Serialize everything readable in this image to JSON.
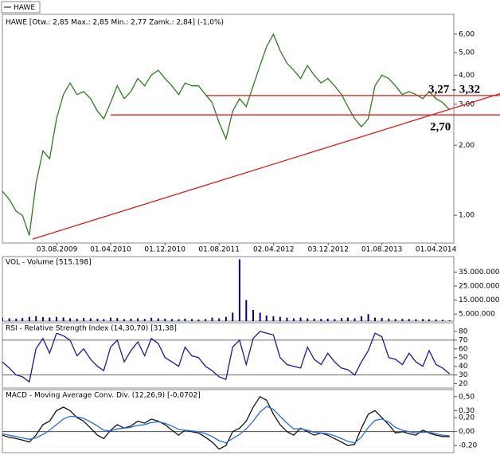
{
  "chart_data": [
    {
      "type": "line",
      "title": "HAWE [Otw.: 2,85  Max.: 2,85  Min.: 2,77  Zamk.: 2,84] (-1,0%)",
      "log_y": true,
      "x": [
        "01.12.2008",
        "01.01.2009",
        "01.02.2009",
        "01.03.2009",
        "01.04.2009",
        "01.05.2009",
        "01.06.2009",
        "01.07.2009",
        "01.08.2009",
        "01.09.2009",
        "01.10.2009",
        "01.11.2009",
        "01.12.2009",
        "01.01.2010",
        "01.02.2010",
        "01.03.2010",
        "01.04.2010",
        "01.05.2010",
        "01.06.2010",
        "01.07.2010",
        "01.08.2010",
        "01.09.2010",
        "01.10.2010",
        "01.11.2010",
        "01.12.2010",
        "01.01.2011",
        "01.02.2011",
        "01.03.2011",
        "01.04.2011",
        "01.05.2011",
        "01.06.2011",
        "01.07.2011",
        "01.08.2011",
        "01.09.2011",
        "01.10.2011",
        "01.11.2011",
        "01.12.2011",
        "01.01.2012",
        "01.02.2012",
        "01.03.2012",
        "01.04.2012",
        "01.05.2012",
        "01.06.2012",
        "01.07.2012",
        "01.08.2012",
        "01.09.2012",
        "01.10.2012",
        "01.11.2012",
        "01.12.2012",
        "01.01.2013",
        "01.02.2013",
        "01.03.2013",
        "01.04.2013",
        "01.05.2013",
        "01.06.2013",
        "01.07.2013",
        "01.08.2013",
        "01.09.2013",
        "01.10.2013",
        "01.11.2013",
        "01.12.2013",
        "01.01.2014",
        "01.02.2014",
        "01.03.2014",
        "01.04.2014",
        "01.05.2014",
        "01.06.2014"
      ],
      "series": [
        {
          "name": "HAWE",
          "color": "#2a7d1f",
          "values": [
            1.27,
            1.17,
            1.04,
            1.0,
            0.82,
            1.37,
            1.89,
            1.75,
            2.6,
            3.3,
            3.7,
            3.3,
            3.4,
            3.17,
            2.8,
            2.6,
            3.05,
            3.6,
            3.17,
            3.4,
            3.87,
            3.6,
            4.0,
            4.2,
            3.87,
            3.6,
            3.3,
            3.7,
            3.6,
            3.6,
            3.3,
            3.05,
            2.5,
            2.13,
            2.8,
            3.17,
            2.93,
            3.6,
            4.4,
            5.3,
            6.0,
            5.1,
            4.5,
            4.2,
            3.87,
            4.4,
            4.0,
            3.7,
            3.87,
            3.6,
            3.3,
            2.93,
            2.6,
            2.4,
            2.6,
            3.6,
            4.0,
            3.87,
            3.6,
            3.3,
            3.4,
            3.3,
            3.17,
            3.4,
            3.17,
            3.05,
            2.84
          ]
        }
      ],
      "xlim": [
        "01.12.2008",
        "20.06.2014"
      ],
      "xticks": [
        "03.08.2009",
        "01.04.2010",
        "01.12.2010",
        "01.08.2011",
        "02.04.2012",
        "03.12.2012",
        "01.08.2013",
        "01.04.2014"
      ],
      "ylim": [
        0.76,
        7.3
      ],
      "yticks": [
        {
          "value": 1,
          "label": "1,00"
        },
        {
          "value": 2,
          "label": "2,00"
        },
        {
          "value": 3,
          "label": "3,00"
        },
        {
          "value": 4,
          "label": "4,00"
        },
        {
          "value": 5,
          "label": "5,00"
        },
        {
          "value": 6,
          "label": "6,00"
        }
      ],
      "reference_lines": [
        {
          "value": 3.27,
          "from": "01.06.2011",
          "color": "#d02020"
        },
        {
          "value": 2.7,
          "from": "01.04.2010",
          "color": "#d02020"
        }
      ],
      "trendline": {
        "x": [
          "15.04.2009",
          "20.06.2014"
        ],
        "values": [
          0.79,
          2.89
        ],
        "color": "#d02020"
      },
      "annotations": [
        "3,27 - 3,32",
        "2,70"
      ]
    },
    {
      "type": "bar",
      "title": "VOL - Volume [515.198]",
      "x": [
        "01.12.2008",
        "01.01.2009",
        "01.02.2009",
        "01.03.2009",
        "01.04.2009",
        "01.05.2009",
        "01.06.2009",
        "01.07.2009",
        "01.08.2009",
        "01.09.2009",
        "01.10.2009",
        "01.11.2009",
        "01.12.2009",
        "01.01.2010",
        "01.02.2010",
        "01.03.2010",
        "01.04.2010",
        "01.05.2010",
        "01.06.2010",
        "01.07.2010",
        "01.08.2010",
        "01.09.2010",
        "01.10.2010",
        "01.11.2010",
        "01.12.2010",
        "01.01.2011",
        "01.02.2011",
        "01.03.2011",
        "01.04.2011",
        "01.05.2011",
        "01.06.2011",
        "01.07.2011",
        "01.08.2011",
        "01.09.2011",
        "01.10.2011",
        "01.11.2011",
        "01.12.2011",
        "01.01.2012",
        "01.02.2012",
        "01.03.2012",
        "01.04.2012",
        "01.05.2012",
        "01.06.2012",
        "01.07.2012",
        "01.08.2012",
        "01.09.2012",
        "01.10.2012",
        "01.11.2012",
        "01.12.2012",
        "01.01.2013",
        "01.02.2013",
        "01.03.2013",
        "01.04.2013",
        "01.05.2013",
        "01.06.2013",
        "01.07.2013",
        "01.08.2013",
        "01.09.2013",
        "01.10.2013",
        "01.11.2013",
        "01.12.2013",
        "01.01.2014",
        "01.02.2014",
        "01.03.2014",
        "01.04.2014",
        "01.05.2014",
        "01.06.2014"
      ],
      "series": [
        {
          "color": "#00008b",
          "values": [
            2500000,
            2000000,
            1800000,
            2200000,
            3000000,
            3500000,
            2800000,
            2500000,
            3000000,
            2600000,
            2000000,
            1800000,
            2200000,
            2000000,
            1800000,
            1500000,
            2500000,
            2200000,
            1500000,
            1800000,
            2000000,
            1600000,
            2400000,
            2000000,
            1800000,
            1500000,
            1400000,
            1800000,
            1500000,
            1200000,
            1500000,
            2500000,
            2000000,
            3000000,
            6000000,
            44000000,
            15000000,
            8000000,
            6000000,
            4000000,
            3500000,
            3000000,
            2500000,
            2000000,
            2500000,
            2000000,
            1800000,
            1600000,
            1800000,
            1500000,
            2200000,
            2500000,
            2000000,
            3500000,
            5000000,
            2500000,
            2200000,
            1800000,
            1500000,
            1600000,
            1500000,
            1400000,
            1500000,
            1300000,
            1200000,
            1000000,
            515198
          ]
        }
      ],
      "xlim": [
        "01.12.2008",
        "20.06.2014"
      ],
      "ylim": [
        0,
        46000000
      ],
      "yticks": [
        {
          "value": 5000000,
          "label": "5.000.000"
        },
        {
          "value": 15000000,
          "label": "15.000.000"
        },
        {
          "value": 25000000,
          "label": "25.000.000"
        },
        {
          "value": 35000000,
          "label": "35.000.000"
        }
      ]
    },
    {
      "type": "line",
      "title": "RSI - Relative Strength Index (14,30,70) [31,38]",
      "x": [
        "01.12.2008",
        "01.01.2009",
        "01.02.2009",
        "01.03.2009",
        "01.04.2009",
        "01.05.2009",
        "01.06.2009",
        "01.07.2009",
        "01.08.2009",
        "01.09.2009",
        "01.10.2009",
        "01.11.2009",
        "01.12.2009",
        "01.01.2010",
        "01.02.2010",
        "01.03.2010",
        "01.04.2010",
        "01.05.2010",
        "01.06.2010",
        "01.07.2010",
        "01.08.2010",
        "01.09.2010",
        "01.10.2010",
        "01.11.2010",
        "01.12.2010",
        "01.01.2011",
        "01.02.2011",
        "01.03.2011",
        "01.04.2011",
        "01.05.2011",
        "01.06.2011",
        "01.07.2011",
        "01.08.2011",
        "01.09.2011",
        "01.10.2011",
        "01.11.2011",
        "01.12.2011",
        "01.01.2012",
        "01.02.2012",
        "01.03.2012",
        "01.04.2012",
        "01.05.2012",
        "01.06.2012",
        "01.07.2012",
        "01.08.2012",
        "01.09.2012",
        "01.10.2012",
        "01.11.2012",
        "01.12.2012",
        "01.01.2013",
        "01.02.2013",
        "01.03.2013",
        "01.04.2013",
        "01.05.2013",
        "01.06.2013",
        "01.07.2013",
        "01.08.2013",
        "01.09.2013",
        "01.10.2013",
        "01.11.2013",
        "01.12.2013",
        "01.01.2014",
        "01.02.2014",
        "01.03.2014",
        "01.04.2014",
        "01.05.2014",
        "01.06.2014"
      ],
      "series": [
        {
          "color": "#1a1a9a",
          "values": [
            45,
            38,
            30,
            28,
            22,
            60,
            72,
            55,
            78,
            75,
            70,
            52,
            60,
            48,
            40,
            35,
            62,
            70,
            45,
            58,
            68,
            52,
            72,
            66,
            50,
            45,
            40,
            62,
            52,
            50,
            40,
            35,
            28,
            25,
            62,
            70,
            42,
            72,
            80,
            78,
            76,
            50,
            42,
            40,
            38,
            62,
            48,
            42,
            55,
            45,
            38,
            36,
            30,
            45,
            58,
            78,
            74,
            50,
            48,
            42,
            55,
            45,
            40,
            58,
            42,
            38,
            31.38
          ]
        }
      ],
      "xlim": [
        "01.12.2008",
        "20.06.2014"
      ],
      "ylim": [
        15,
        90
      ],
      "yticks": [
        20,
        30,
        40,
        50,
        60,
        70,
        80
      ],
      "levels": [
        30,
        70
      ]
    },
    {
      "type": "line",
      "title": "MACD - Moving Average Conv. Div. (12,26,9) [-0,0702]",
      "x": [
        "01.12.2008",
        "01.01.2009",
        "01.02.2009",
        "01.03.2009",
        "01.04.2009",
        "01.05.2009",
        "01.06.2009",
        "01.07.2009",
        "01.08.2009",
        "01.09.2009",
        "01.10.2009",
        "01.11.2009",
        "01.12.2009",
        "01.01.2010",
        "01.02.2010",
        "01.03.2010",
        "01.04.2010",
        "01.05.2010",
        "01.06.2010",
        "01.07.2010",
        "01.08.2010",
        "01.09.2010",
        "01.10.2010",
        "01.11.2010",
        "01.12.2010",
        "01.01.2011",
        "01.02.2011",
        "01.03.2011",
        "01.04.2011",
        "01.05.2011",
        "01.06.2011",
        "01.07.2011",
        "01.08.2011",
        "01.09.2011",
        "01.10.2011",
        "01.11.2011",
        "01.12.2011",
        "01.01.2012",
        "01.02.2012",
        "01.03.2012",
        "01.04.2012",
        "01.05.2012",
        "01.06.2012",
        "01.07.2012",
        "01.08.2012",
        "01.09.2012",
        "01.10.2012",
        "01.11.2012",
        "01.12.2012",
        "01.01.2013",
        "01.02.2013",
        "01.03.2013",
        "01.04.2013",
        "01.05.2013",
        "01.06.2013",
        "01.07.2013",
        "01.08.2013",
        "01.09.2013",
        "01.10.2013",
        "01.11.2013",
        "01.12.2013",
        "01.01.2014",
        "01.02.2014",
        "01.03.2014",
        "01.04.2014",
        "01.05.2014",
        "01.06.2014"
      ],
      "series": [
        {
          "color": "#111111",
          "values": [
            -0.05,
            -0.08,
            -0.1,
            -0.12,
            -0.15,
            -0.05,
            0.1,
            0.15,
            0.3,
            0.35,
            0.3,
            0.2,
            0.15,
            0.05,
            -0.05,
            -0.1,
            0.02,
            0.1,
            0.05,
            0.08,
            0.15,
            0.12,
            0.18,
            0.15,
            0.1,
            0.02,
            -0.05,
            0.02,
            0.0,
            -0.02,
            -0.08,
            -0.15,
            -0.25,
            -0.2,
            0.0,
            0.05,
            0.15,
            0.35,
            0.5,
            0.45,
            0.25,
            0.1,
            0.0,
            -0.05,
            0.05,
            0.0,
            -0.05,
            -0.02,
            -0.05,
            -0.1,
            -0.15,
            -0.2,
            -0.18,
            0.05,
            0.25,
            0.3,
            0.2,
            0.1,
            -0.02,
            0.0,
            -0.03,
            -0.05,
            0.02,
            -0.02,
            -0.05,
            -0.07,
            -0.0702
          ]
        },
        {
          "color": "#2b6cd6",
          "values": [
            -0.03,
            -0.05,
            -0.07,
            -0.09,
            -0.11,
            -0.09,
            -0.04,
            0.02,
            0.1,
            0.18,
            0.22,
            0.21,
            0.19,
            0.14,
            0.08,
            0.02,
            0.01,
            0.04,
            0.05,
            0.06,
            0.09,
            0.1,
            0.13,
            0.14,
            0.12,
            0.08,
            0.03,
            0.02,
            0.01,
            0.0,
            -0.03,
            -0.07,
            -0.13,
            -0.16,
            -0.1,
            -0.04,
            0.04,
            0.15,
            0.28,
            0.36,
            0.32,
            0.22,
            0.12,
            0.04,
            0.04,
            0.02,
            -0.01,
            -0.02,
            -0.03,
            -0.06,
            -0.1,
            -0.14,
            -0.16,
            -0.08,
            0.06,
            0.16,
            0.18,
            0.14,
            0.06,
            0.02,
            0.0,
            -0.02,
            -0.01,
            -0.01,
            -0.03,
            -0.05,
            -0.06
          ]
        }
      ],
      "xlim": [
        "01.12.2008",
        "20.06.2014"
      ],
      "ylim": [
        -0.3,
        0.6
      ],
      "yticks": [
        {
          "value": -0.2,
          "label": "-0,20"
        },
        {
          "value": 0,
          "label": "0,00"
        },
        {
          "value": 0.2,
          "label": "0,20"
        },
        {
          "value": 0.3,
          "label": "0,30"
        },
        {
          "value": 0.5,
          "label": "0,50"
        }
      ],
      "levels": [
        0
      ]
    }
  ]
}
